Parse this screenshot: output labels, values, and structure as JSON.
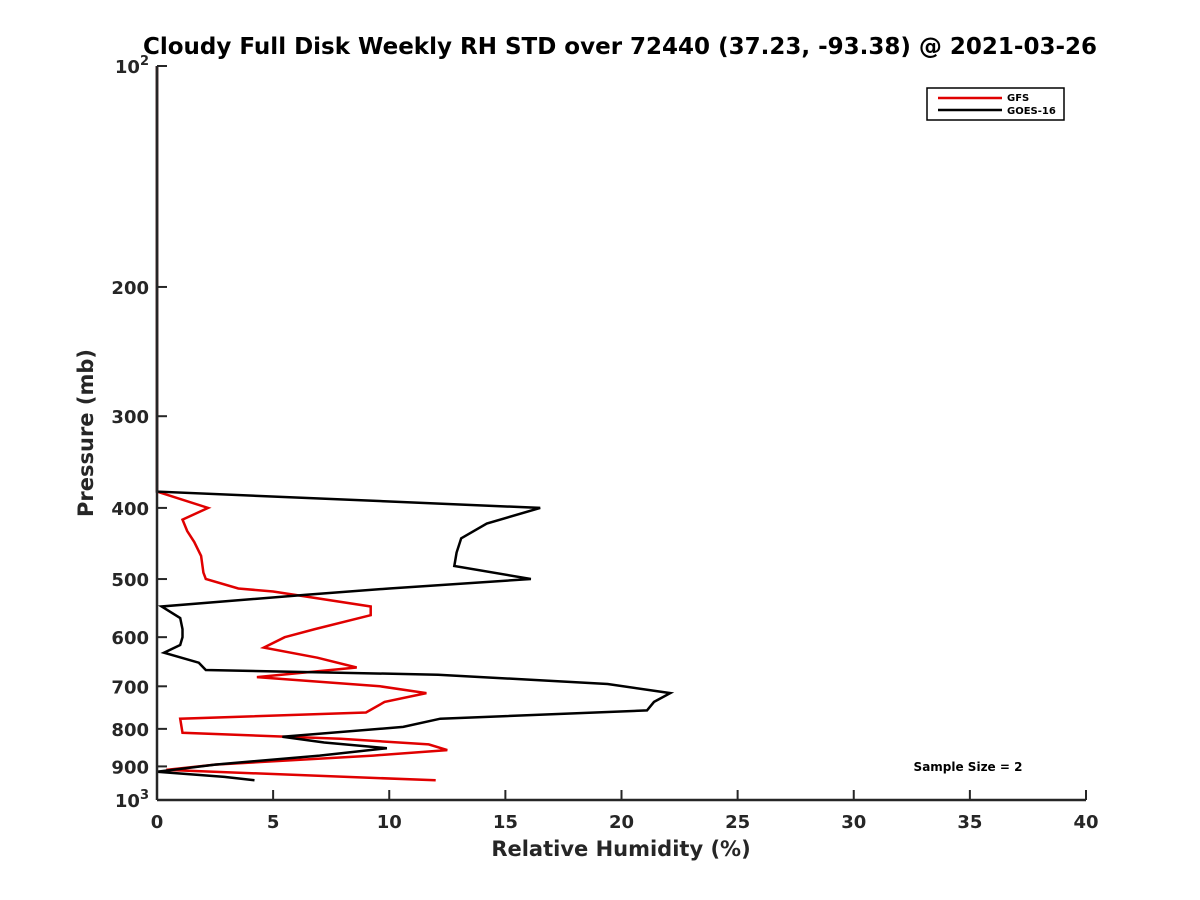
{
  "chart_data": {
    "type": "line",
    "title": "Cloudy Full Disk Weekly RH STD over 72440 (37.23, -93.38) @ 2021-03-26",
    "xlabel": "Relative Humidity (%)",
    "ylabel": "Pressure (mb)",
    "xlim": [
      0,
      40
    ],
    "ylim": [
      100,
      1000
    ],
    "y_scale": "log",
    "y_reversed": true,
    "x_ticks": [
      "0",
      "5",
      "10",
      "15",
      "20",
      "25",
      "30",
      "35",
      "40"
    ],
    "y_ticks": [
      {
        "value": 100,
        "base": "10",
        "exp": "2"
      },
      {
        "value": 200,
        "label": "200"
      },
      {
        "value": 300,
        "label": "300"
      },
      {
        "value": 400,
        "label": "400"
      },
      {
        "value": 500,
        "label": "500"
      },
      {
        "value": 600,
        "label": "600"
      },
      {
        "value": 700,
        "label": "700"
      },
      {
        "value": 800,
        "label": "800"
      },
      {
        "value": 900,
        "label": "900"
      },
      {
        "value": 1000,
        "base": "10",
        "exp": "3"
      }
    ],
    "legend_position": "top-right",
    "grid": false,
    "annotation": "Sample Size = 2",
    "series": [
      {
        "name": "GFS",
        "color": "#e00000",
        "points": [
          [
            0,
            100
          ],
          [
            0,
            380
          ],
          [
            2.2,
            400
          ],
          [
            1.1,
            415
          ],
          [
            1.3,
            430
          ],
          [
            1.6,
            445
          ],
          [
            1.9,
            465
          ],
          [
            2.0,
            490
          ],
          [
            2.1,
            500
          ],
          [
            3.5,
            515
          ],
          [
            5.0,
            520
          ],
          [
            9.2,
            545
          ],
          [
            9.2,
            560
          ],
          [
            6.8,
            585
          ],
          [
            5.5,
            600
          ],
          [
            4.6,
            620
          ],
          [
            6.9,
            640
          ],
          [
            8.6,
            660
          ],
          [
            4.3,
            680
          ],
          [
            9.6,
            700
          ],
          [
            11.6,
            715
          ],
          [
            9.8,
            735
          ],
          [
            9.0,
            760
          ],
          [
            1.0,
            775
          ],
          [
            1.1,
            810
          ],
          [
            7.9,
            825
          ],
          [
            11.7,
            840
          ],
          [
            12.5,
            855
          ],
          [
            9.3,
            870
          ],
          [
            2.5,
            895
          ],
          [
            0.4,
            910
          ],
          [
            12.0,
            940
          ]
        ]
      },
      {
        "name": "GOES-16",
        "color": "#000000",
        "points": [
          [
            0,
            100
          ],
          [
            0,
            380
          ],
          [
            16.5,
            400
          ],
          [
            14.2,
            420
          ],
          [
            13.1,
            440
          ],
          [
            12.9,
            460
          ],
          [
            12.8,
            480
          ],
          [
            16.1,
            500
          ],
          [
            10.0,
            515
          ],
          [
            6.5,
            525
          ],
          [
            0.2,
            545
          ],
          [
            1.0,
            565
          ],
          [
            1.1,
            585
          ],
          [
            1.1,
            600
          ],
          [
            1.0,
            615
          ],
          [
            0.3,
            630
          ],
          [
            1.8,
            650
          ],
          [
            2.1,
            665
          ],
          [
            12.1,
            675
          ],
          [
            19.4,
            695
          ],
          [
            22.1,
            715
          ],
          [
            21.4,
            735
          ],
          [
            21.1,
            755
          ],
          [
            12.2,
            775
          ],
          [
            10.6,
            795
          ],
          [
            5.4,
            820
          ],
          [
            7.2,
            835
          ],
          [
            9.9,
            850
          ],
          [
            7.0,
            870
          ],
          [
            2.5,
            895
          ],
          [
            0,
            915
          ],
          [
            2.9,
            930
          ],
          [
            4.2,
            940
          ]
        ]
      }
    ]
  }
}
